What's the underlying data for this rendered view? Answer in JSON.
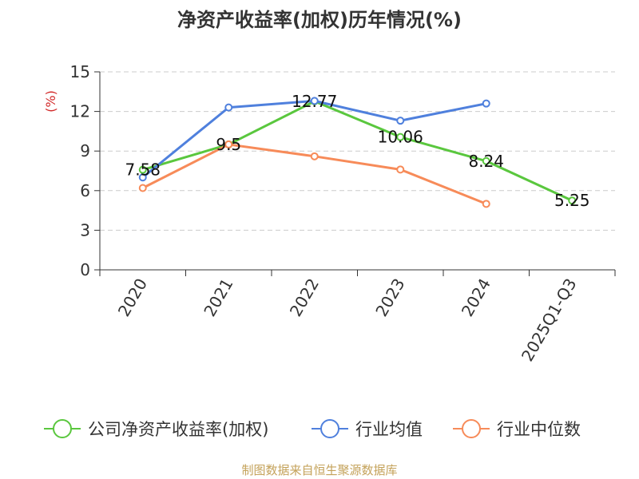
{
  "chart_data": {
    "type": "line",
    "title": "净资产收益率(加权)历年情况(%)",
    "ylabel": "(%)",
    "xlabel": "",
    "categories": [
      "2020",
      "2021",
      "2022",
      "2023",
      "2024",
      "2025Q1-Q3"
    ],
    "ylim": [
      0,
      15
    ],
    "yticks": [
      0,
      3,
      6,
      9,
      12,
      15
    ],
    "grid": true,
    "legend_position": "bottom",
    "series": [
      {
        "name": "公司净资产收益率(加权)",
        "color": "#5ac73e",
        "values": [
          7.58,
          9.5,
          12.77,
          10.06,
          8.24,
          5.25
        ],
        "labels": [
          "7.58",
          "9.5",
          "12.77",
          "10.06",
          "8.24",
          "5.25"
        ]
      },
      {
        "name": "行业均值",
        "color": "#4f80dd",
        "values": [
          7.0,
          12.3,
          12.8,
          11.3,
          12.6,
          null
        ]
      },
      {
        "name": "行业中位数",
        "color": "#f78b59",
        "values": [
          6.2,
          9.5,
          8.6,
          7.6,
          5.0,
          null
        ]
      }
    ],
    "source": "制图数据来自恒生聚源数据库"
  }
}
